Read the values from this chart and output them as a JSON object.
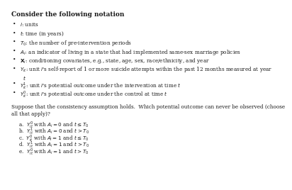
{
  "title": "Consider the following notation",
  "bg_color": "#ffffff",
  "text_color": "#1a1a1a",
  "fontsize_title": 6.5,
  "fontsize_body": 5.2,
  "fontsize_q": 5.2,
  "bullet": "•",
  "bullet_items": [
    {
      "pre": "$i$",
      "post": ": units"
    },
    {
      "pre": "$t$",
      "post": ": time (in years)"
    },
    {
      "pre": "$T_0$",
      "post": ": the number of pre-intervention periods"
    },
    {
      "pre": "$A_i$",
      "post": ": an indicator of living in a state that had implemented same-sex marriage policies"
    },
    {
      "pre": "$\\mathbf{X}_i$",
      "post": ": conditioning covariates, e.g., state, age, sex, race/ethnicity, and year"
    },
    {
      "pre": "$Y_{it}$",
      "post": ": unit $i$'s self-report of 1 or more suicide attempts within the past 12 months measured at year",
      "wrap": "$t$"
    },
    {
      "pre": "$Y_{it}^{1}$",
      "post": ": unit $i$'s potential outcome under the intervention at time $t$"
    },
    {
      "pre": "$Y_{it}^{0}$",
      "post": ": unit $i$'s potential outcome under the control at time $t$"
    }
  ],
  "question_line1": "Suppose that the consistency assumption holds.  Which potential outcome can never be observed (choose",
  "question_line2": "all that apply)?",
  "choices": [
    {
      "letter": "a.",
      "math": "$Y_{it}^{0}$",
      "rest": " with $A_i = 0$ and $t \\leq T_0$"
    },
    {
      "letter": "b.",
      "math": "$Y_{it}^{1}$",
      "rest": " with $A_i = 0$ and $t > T_0$"
    },
    {
      "letter": "c.",
      "math": "$Y_{it}^{0}$",
      "rest": " with $A_i = 1$ and $t \\leq T_0$"
    },
    {
      "letter": "d.",
      "math": "$Y_{it}^{1}$",
      "rest": " with $A_i = 1$ and $t > T_0$"
    },
    {
      "letter": "e.",
      "math": "$Y_{it}^{0}$",
      "rest": " with $A_i = 1$ and $t > T_0$"
    }
  ]
}
